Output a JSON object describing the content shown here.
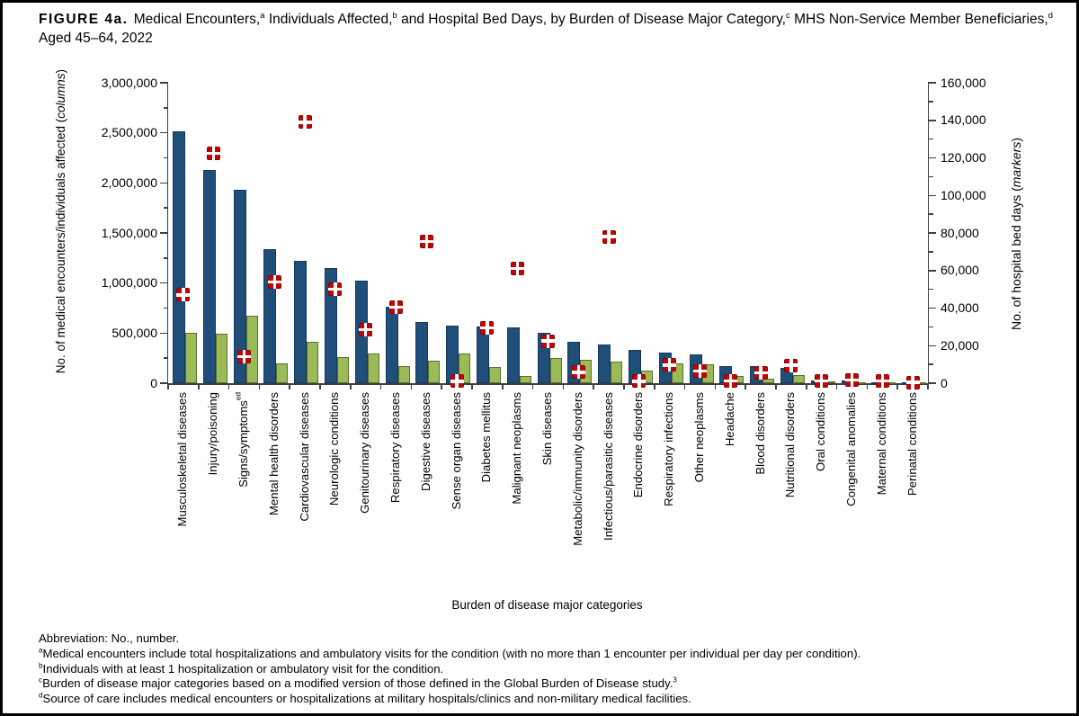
{
  "figure": {
    "title_segments": [
      {
        "b": "FIGURE 4a."
      },
      {
        "t": " Medical Encounters,"
      },
      {
        "sup": "a"
      },
      {
        "t": " Individuals Affected,"
      },
      {
        "sup": "b"
      },
      {
        "t": " and Hospital Bed Days, by Burden of Disease Major Category,"
      },
      {
        "sup": "c"
      },
      {
        "t": " MHS Non-Service Member Beneficiaries,"
      },
      {
        "sup": "d"
      },
      {
        "t": " Aged 45–64, 2022"
      }
    ]
  },
  "chart_data": {
    "type": "bar",
    "subtype": "grouped columns with scatter markers on secondary axis",
    "grid": false,
    "legend_position": "none",
    "xlabel": "Burden of disease major categories",
    "categories": [
      {
        "label": "Musculoskeletal diseases",
        "sup": ""
      },
      {
        "label": "Injury/poisoning",
        "sup": ""
      },
      {
        "label": "Signs/symptoms",
        "sup": "ed"
      },
      {
        "label": "Mental health disorders",
        "sup": ""
      },
      {
        "label": "Cardiovascular diseases",
        "sup": ""
      },
      {
        "label": "Neurologic conditions",
        "sup": ""
      },
      {
        "label": "Genitourinary diseases",
        "sup": ""
      },
      {
        "label": "Respiratory diseases",
        "sup": ""
      },
      {
        "label": "Digestive diseases",
        "sup": ""
      },
      {
        "label": "Sense organ diseases",
        "sup": ""
      },
      {
        "label": "Diabetes mellitus",
        "sup": ""
      },
      {
        "label": "Malignant neoplasms",
        "sup": ""
      },
      {
        "label": "Skin diseases",
        "sup": ""
      },
      {
        "label": "Metabolic/immunity disorders",
        "sup": ""
      },
      {
        "label": "Infectious/parasitic diseases",
        "sup": ""
      },
      {
        "label": "Endocrine disorders",
        "sup": ""
      },
      {
        "label": "Respiratory infections",
        "sup": ""
      },
      {
        "label": "Other neoplasms",
        "sup": ""
      },
      {
        "label": "Headache",
        "sup": ""
      },
      {
        "label": "Blood disorders",
        "sup": ""
      },
      {
        "label": "Nutritional disorders",
        "sup": ""
      },
      {
        "label": "Oral conditions",
        "sup": ""
      },
      {
        "label": "Congenital anomalies",
        "sup": ""
      },
      {
        "label": "Maternal conditions",
        "sup": ""
      },
      {
        "label": "Perinatal conditions",
        "sup": ""
      }
    ],
    "series": [
      {
        "name": "Medical encounters",
        "render": "column",
        "axis": "left",
        "color": "#1F4E79",
        "border_color": "#17375E",
        "values": [
          2515000,
          2125000,
          1935000,
          1340000,
          1225000,
          1150000,
          1020000,
          760000,
          610000,
          573000,
          563000,
          555000,
          505000,
          415000,
          385000,
          333000,
          303000,
          288000,
          175000,
          172000,
          150000,
          31000,
          24000,
          6000,
          2500
        ]
      },
      {
        "name": "Individuals affected",
        "render": "column",
        "axis": "left",
        "color": "#9BBB59",
        "border_color": "#5B6F2D",
        "values": [
          505000,
          490000,
          670000,
          197000,
          415000,
          260000,
          300000,
          170000,
          225000,
          294000,
          160000,
          76000,
          255000,
          233000,
          220000,
          130000,
          198000,
          193000,
          72000,
          49000,
          78000,
          18000,
          13000,
          3500,
          2000
        ]
      },
      {
        "name": "Hospital bed days",
        "render": "marker",
        "axis": "right",
        "color": "#C00606",
        "values": [
          47000,
          122500,
          14000,
          54000,
          139000,
          50000,
          28500,
          40500,
          75500,
          1000,
          29500,
          61000,
          22500,
          5800,
          78000,
          1000,
          9600,
          6400,
          1300,
          5500,
          9500,
          1300,
          1600,
          1300,
          400
        ]
      }
    ],
    "left_axis": {
      "min": 0,
      "max": 3000000,
      "major": 500000,
      "minor": 250000,
      "title_segments": [
        {
          "t": "No. of medical encounters/individuals affected ("
        },
        {
          "i": "columns"
        },
        {
          "t": ")"
        }
      ]
    },
    "right_axis": {
      "min": 0,
      "max": 160000,
      "major": 20000,
      "minor": 10000,
      "title_segments": [
        {
          "t": "No. of hospital bed days ("
        },
        {
          "i": "markers"
        },
        {
          "t": ")"
        }
      ]
    }
  },
  "footnotes": [
    [
      {
        "t": "Abbreviation: No., number."
      }
    ],
    [
      {
        "sup": "a"
      },
      {
        "t": "Medical encounters include total hospitalizations and ambulatory visits for the condition (with no more than 1 encounter per individual per day per condition)."
      }
    ],
    [
      {
        "sup": "b"
      },
      {
        "t": "Individuals with at least 1 hospitalization or ambulatory visit for the condition."
      }
    ],
    [
      {
        "sup": "c"
      },
      {
        "t": "Burden of disease major categories based on a modified version of those defined in the Global Burden of Disease study."
      },
      {
        "sup": "3"
      }
    ],
    [
      {
        "sup": "d"
      },
      {
        "t": "Source of care includes medical encounters or hospitalizations at military hospitals/clinics and non-military medical facilities."
      }
    ]
  ]
}
